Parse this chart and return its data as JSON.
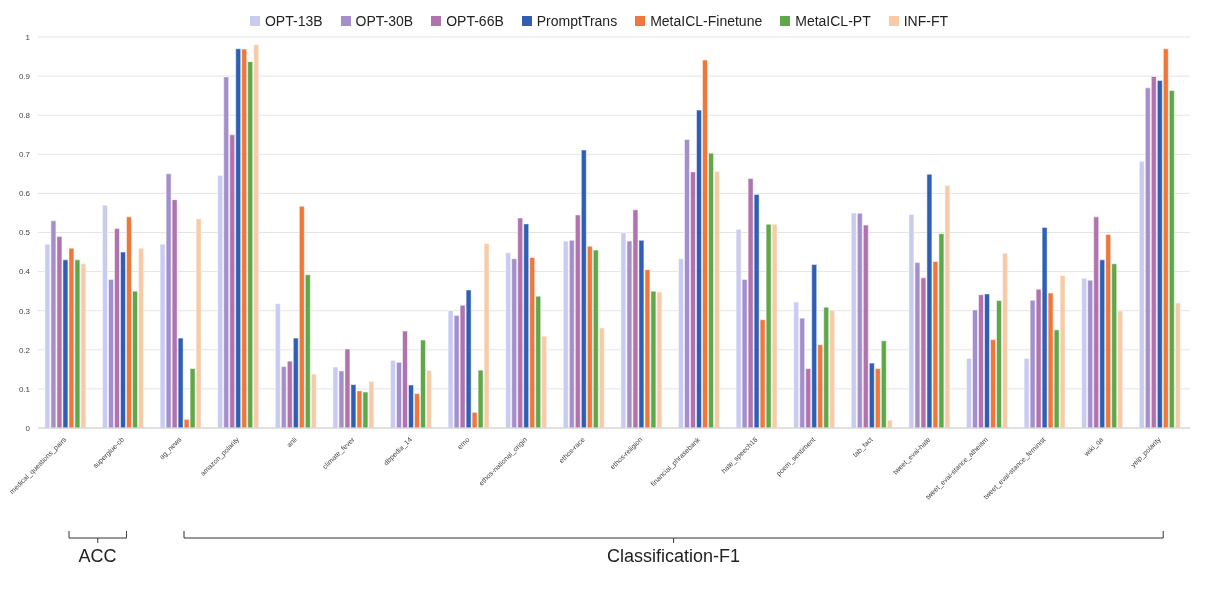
{
  "chart_data": {
    "type": "bar",
    "categories": [
      "medical_questions_pairs",
      "superglue-cb",
      "ag_news",
      "amazon_polarity",
      "anli",
      "climate_fever",
      "dbpedia_14",
      "emo",
      "ethos-national_origin",
      "ethos-race",
      "ethos-religion",
      "financial_phrasebank",
      "hate_speech18",
      "poem_sentiment",
      "tab_fact",
      "tweet_eval-hate",
      "tweet_eval-stance_atheism",
      "tweet_eval-stance_feminist",
      "wiki_qa",
      "yelp_polarity"
    ],
    "series": [
      {
        "name": "OPT-13B",
        "color": "#c9cbf0",
        "values": [
          0.47,
          0.57,
          0.47,
          0.646,
          0.318,
          0.156,
          0.173,
          0.3,
          0.448,
          0.478,
          0.499,
          0.433,
          0.508,
          0.322,
          0.55,
          0.546,
          0.178,
          0.178,
          0.383,
          0.682
        ]
      },
      {
        "name": "OPT-30B",
        "color": "#a48fcc",
        "values": [
          0.53,
          0.38,
          0.65,
          0.898,
          0.157,
          0.146,
          0.168,
          0.288,
          0.433,
          0.48,
          0.478,
          0.738,
          0.38,
          0.281,
          0.549,
          0.423,
          0.302,
          0.327,
          0.378,
          0.87
        ]
      },
      {
        "name": "OPT-66B",
        "color": "#b073ad",
        "values": [
          0.49,
          0.51,
          0.584,
          0.75,
          0.171,
          0.202,
          0.248,
          0.314,
          0.537,
          0.545,
          0.558,
          0.655,
          0.638,
          0.152,
          0.519,
          0.384,
          0.341,
          0.355,
          0.54,
          0.899
        ]
      },
      {
        "name": "PromptTrans",
        "color": "#2f5fb5",
        "values": [
          0.43,
          0.45,
          0.23,
          0.97,
          0.23,
          0.111,
          0.11,
          0.353,
          0.522,
          0.711,
          0.48,
          0.813,
          0.597,
          0.418,
          0.166,
          0.649,
          0.343,
          0.513,
          0.43,
          0.889
        ]
      },
      {
        "name": "MetaICL-Finetune",
        "color": "#f0773a",
        "values": [
          0.46,
          0.54,
          0.022,
          0.969,
          0.567,
          0.095,
          0.088,
          0.04,
          0.436,
          0.465,
          0.405,
          0.941,
          0.277,
          0.213,
          0.152,
          0.426,
          0.226,
          0.345,
          0.495,
          0.97
        ]
      },
      {
        "name": "MetaICL-PT",
        "color": "#5fa84a",
        "values": [
          0.43,
          0.35,
          0.152,
          0.937,
          0.392,
          0.092,
          0.225,
          0.148,
          0.337,
          0.455,
          0.35,
          0.703,
          0.521,
          0.309,
          0.223,
          0.497,
          0.326,
          0.251,
          0.42,
          0.863
        ]
      },
      {
        "name": "INF-FT",
        "color": "#f7cba8",
        "values": [
          0.42,
          0.46,
          0.535,
          0.98,
          0.138,
          0.119,
          0.147,
          0.472,
          0.235,
          0.256,
          0.348,
          0.656,
          0.521,
          0.301,
          0.02,
          0.62,
          0.447,
          0.39,
          0.299,
          0.32
        ]
      }
    ],
    "ylim": [
      0,
      1
    ],
    "yticks": [
      0,
      0.1,
      0.2,
      0.3,
      0.4,
      0.5,
      0.6,
      0.7,
      0.8,
      0.9,
      1
    ],
    "grid": "y",
    "legend": "top",
    "annotations": [
      "ACC",
      "Classification-F1"
    ]
  }
}
